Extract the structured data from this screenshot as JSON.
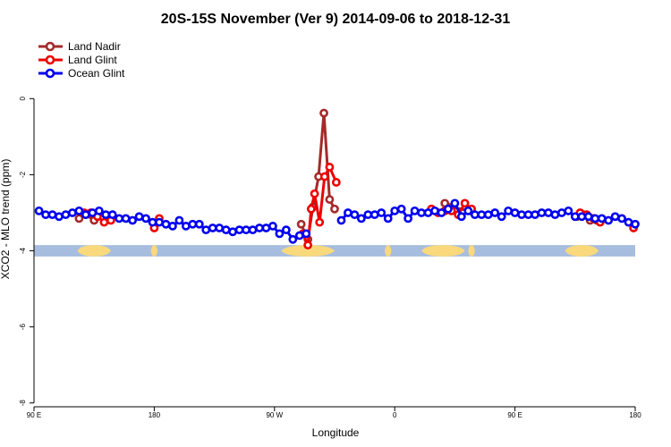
{
  "chart_data": {
    "type": "line",
    "title": "20S-15S November (Ver 9)   2014-09-06 to 2018-12-31",
    "xlabel": "Longitude",
    "ylabel": "XCO2 - MLO trend (ppm)",
    "xlim": [
      90,
      270
    ],
    "ylim": [
      -8.1,
      1.7
    ],
    "x_ticks": [
      {
        "value": 90,
        "label": "90 E"
      },
      {
        "value": 126,
        "label": "180"
      },
      {
        "value": 162,
        "label": "90 W"
      },
      {
        "value": 198,
        "label": "0"
      },
      {
        "value": 234,
        "label": "90 E"
      },
      {
        "value": 270,
        "label": "180"
      }
    ],
    "y_ticks": [
      {
        "value": 0,
        "label": "0"
      },
      {
        "value": -2,
        "label": "-2"
      },
      {
        "value": -4,
        "label": "-4"
      },
      {
        "value": -6,
        "label": "-6"
      },
      {
        "value": -8,
        "label": "-8"
      }
    ],
    "grid": false,
    "legend_position": "top-left",
    "land_mask": {
      "band_y": [
        -4.15,
        -3.85
      ],
      "colors": {
        "ocean": "#a7bddf",
        "land": "#f9d97c"
      },
      "land_ranges": [
        [
          103,
          113
        ],
        [
          125,
          127
        ],
        [
          164,
          180
        ],
        [
          195,
          197
        ],
        [
          206,
          219
        ],
        [
          220,
          222
        ],
        [
          249,
          259
        ]
      ]
    },
    "series": [
      {
        "name": "Land Nadir",
        "color": "#a52a2a",
        "segments": [
          {
            "x": [
              103.5,
              105.5,
              108.0
            ],
            "y": [
              -3.15,
              -3.05,
              -3.2
            ]
          },
          {
            "x": [
              170.0,
              172.0,
              173.5,
              175.2,
              176.8,
              178.5,
              180.0
            ],
            "y": [
              -3.3,
              -3.7,
              -2.85,
              -2.05,
              -0.38,
              -2.65,
              -2.9
            ]
          },
          {
            "x": [
              213.0,
              215.0,
              220.5
            ],
            "y": [
              -2.75,
              -2.85,
              -2.95
            ]
          },
          {
            "x": [
              252.5,
              254.5,
              256.5,
              258.5
            ],
            "y": [
              -3.1,
              -3.05,
              -3.2,
              -3.2
            ]
          }
        ]
      },
      {
        "name": "Land Glint",
        "color": "#ee0000",
        "segments": [
          {
            "x": [
              105.0,
              107.0
            ],
            "y": [
              -3.0,
              -3.0
            ]
          },
          {
            "x": [
              109.0,
              111.0,
              113.0
            ],
            "y": [
              -3.1,
              -3.25,
              -3.2
            ]
          },
          {
            "x": [
              126.0,
              127.5
            ],
            "y": [
              -3.4,
              -3.15
            ]
          },
          {
            "x": [
              170.5,
              172.0,
              173.0,
              174.0,
              175.5,
              177.0,
              178.5,
              180.5
            ],
            "y": [
              -3.55,
              -3.85,
              -2.9,
              -2.5,
              -3.25,
              -2.05,
              -1.8,
              -2.2
            ]
          },
          {
            "x": [
              209.0,
              211.0,
              213.0,
              215.0,
              217.0,
              219.0,
              221.0
            ],
            "y": [
              -2.9,
              -3.0,
              -2.95,
              -2.95,
              -3.05,
              -2.75,
              -2.9
            ]
          },
          {
            "x": [
              253.5,
              255.5,
              257.5,
              259.5
            ],
            "y": [
              -3.0,
              -3.05,
              -3.15,
              -3.25
            ]
          },
          {
            "x": [
              269.5
            ],
            "y": [
              -3.4
            ]
          }
        ]
      },
      {
        "name": "Ocean Glint",
        "color": "#0000ee",
        "segments": [
          {
            "x": [
              91.5,
              93.5,
              95.5,
              97.5,
              99.5,
              101.5,
              103.5,
              105.5,
              107.5,
              109.5,
              111.5,
              113.5,
              115.5,
              117.5,
              119.5,
              121.5,
              123.5,
              125.5,
              127.5,
              129.5,
              131.5,
              133.5,
              135.5,
              137.5,
              139.5,
              141.5,
              143.5,
              145.5,
              147.5,
              149.5,
              151.5,
              153.5,
              155.5,
              157.5,
              159.5,
              161.5,
              163.5,
              165.5,
              167.5,
              169.5,
              171.5
            ],
            "y": [
              -2.95,
              -3.05,
              -3.05,
              -3.1,
              -3.05,
              -3.0,
              -2.95,
              -3.05,
              -3.0,
              -2.95,
              -3.05,
              -3.05,
              -3.15,
              -3.15,
              -3.2,
              -3.1,
              -3.15,
              -3.25,
              -3.25,
              -3.3,
              -3.35,
              -3.2,
              -3.35,
              -3.3,
              -3.3,
              -3.45,
              -3.4,
              -3.4,
              -3.45,
              -3.5,
              -3.45,
              -3.45,
              -3.45,
              -3.4,
              -3.4,
              -3.35,
              -3.55,
              -3.45,
              -3.7,
              -3.6,
              -3.55
            ]
          },
          {
            "x": [
              182.0,
              184.0,
              186.0,
              188.0,
              190.0,
              192.0,
              194.0,
              196.0,
              198.0,
              200.0,
              202.0,
              204.0,
              206.0,
              208.0,
              210.0,
              212.0,
              214.0,
              216.0,
              218.0,
              220.0,
              222.0,
              224.0,
              226.0,
              228.0,
              230.0,
              232.0,
              234.0,
              236.0,
              238.0,
              240.0,
              242.0,
              244.0,
              246.0,
              248.0,
              250.0,
              252.0,
              254.0,
              256.0,
              258.0,
              260.0,
              262.0,
              264.0,
              266.0,
              268.0,
              270.0
            ],
            "y": [
              -3.2,
              -3.0,
              -3.05,
              -3.15,
              -3.05,
              -3.05,
              -3.0,
              -3.15,
              -2.95,
              -2.9,
              -3.15,
              -2.95,
              -3.0,
              -3.0,
              -2.95,
              -3.0,
              -2.9,
              -2.75,
              -3.1,
              -2.95,
              -3.05,
              -3.05,
              -3.05,
              -3.0,
              -3.1,
              -2.95,
              -3.0,
              -3.05,
              -3.05,
              -3.05,
              -3.0,
              -3.0,
              -3.05,
              -3.0,
              -2.95,
              -3.1,
              -3.1,
              -3.1,
              -3.15,
              -3.15,
              -3.2,
              -3.1,
              -3.15,
              -3.25,
              -3.3
            ]
          }
        ]
      }
    ]
  }
}
